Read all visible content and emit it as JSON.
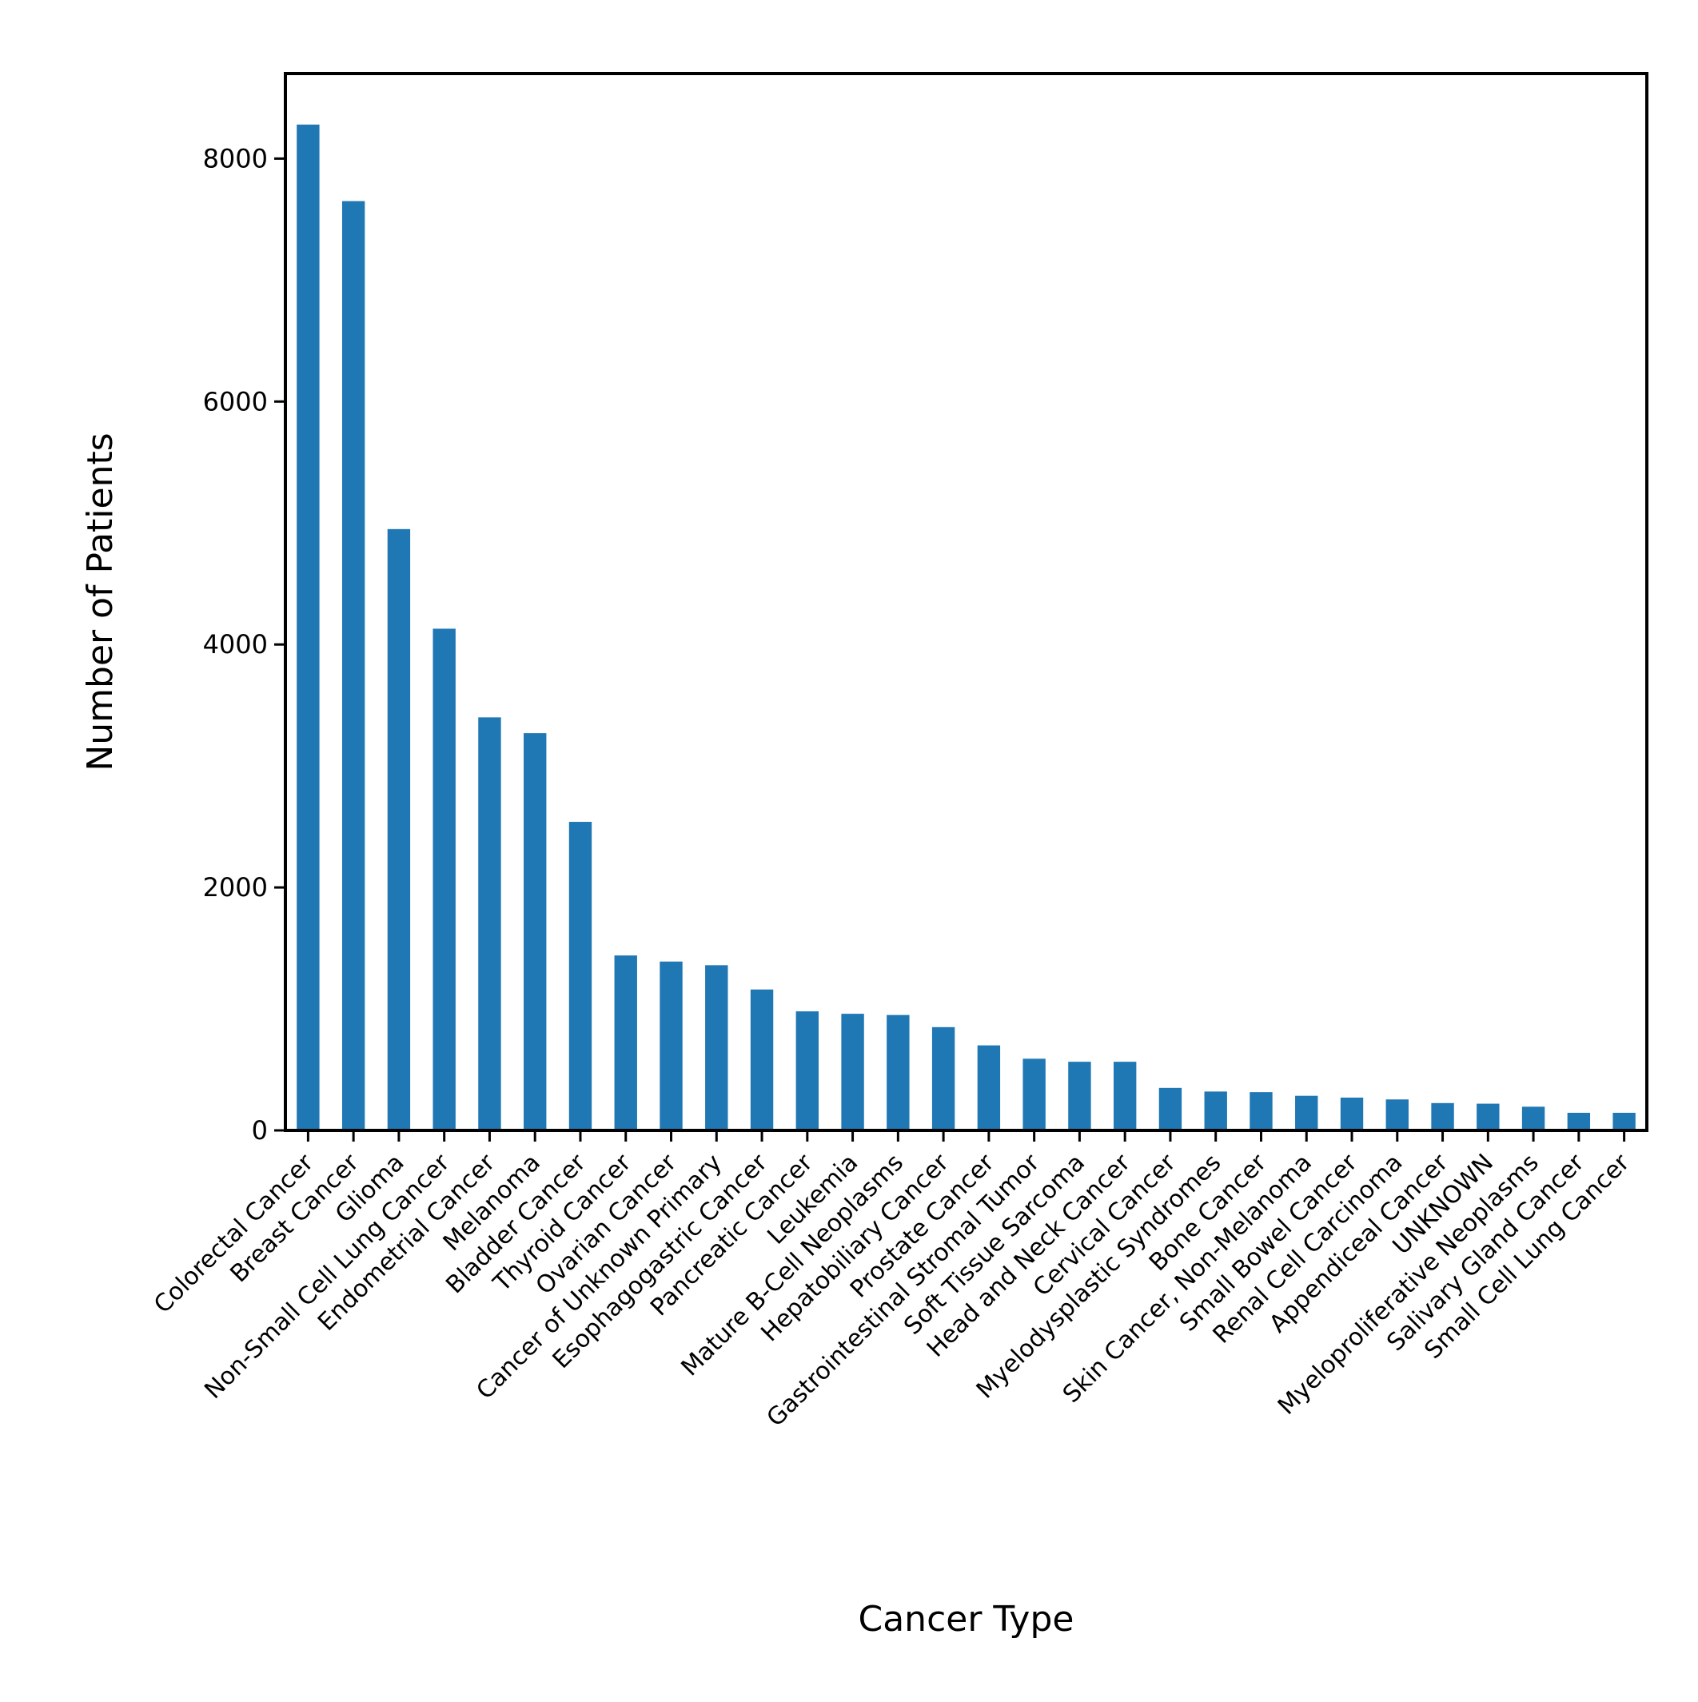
{
  "chart_data": {
    "type": "bar",
    "title": "",
    "xlabel": "Cancer Type",
    "ylabel": "Number of Patients",
    "ylim": [
      0,
      8700
    ],
    "yticks": [
      0,
      2000,
      4000,
      6000,
      8000
    ],
    "grid": false,
    "legend": "none",
    "bar_color": "#1f77b4",
    "categories": [
      "Colorectal Cancer",
      "Breast Cancer",
      "Glioma",
      "Non-Small Cell Lung Cancer",
      "Endometrial Cancer",
      "Melanoma",
      "Bladder Cancer",
      "Thyroid Cancer",
      "Ovarian Cancer",
      "Cancer of Unknown Primary",
      "Esophagogastric Cancer",
      "Pancreatic Cancer",
      "Leukemia",
      "Mature B-Cell Neoplasms",
      "Hepatobiliary Cancer",
      "Prostate Cancer",
      "Gastrointestinal Stromal Tumor",
      "Soft Tissue Sarcoma",
      "Head and Neck Cancer",
      "Cervical Cancer",
      "Myelodysplastic Syndromes",
      "Bone Cancer",
      "Skin Cancer, Non-Melanoma",
      "Small Bowel Cancer",
      "Renal Cell Carcinoma",
      "Appendiceal Cancer",
      "UNKNOWN",
      "Myeloproliferative Neoplasms",
      "Salivary Gland Cancer",
      "Small Cell Lung Cancer"
    ],
    "values": [
      8280,
      7650,
      4950,
      4130,
      3400,
      3270,
      2540,
      1440,
      1390,
      1360,
      1160,
      980,
      960,
      950,
      850,
      700,
      590,
      565,
      565,
      350,
      320,
      315,
      285,
      270,
      255,
      225,
      220,
      195,
      145,
      145
    ]
  }
}
